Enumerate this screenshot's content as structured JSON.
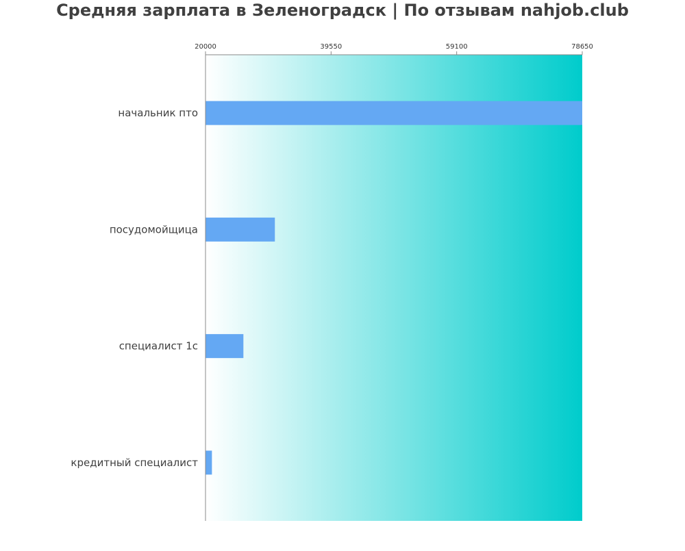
{
  "chart_data": {
    "type": "bar",
    "orientation": "horizontal",
    "title": "Средняя зарплата в Зеленоградск | По отзывам nahjob.club",
    "categories": [
      "начальник пто",
      "посудомойщица",
      "специалист 1с",
      "кредитный специалист"
    ],
    "values": [
      78650,
      30800,
      25900,
      21000
    ],
    "x_ticks": [
      "20000",
      "39550",
      "59100",
      "78650"
    ],
    "xlim": [
      20000,
      78650
    ],
    "grid": false,
    "bar_color": "#64a8f3",
    "background_gradient": [
      "#ffffff",
      "#00cccc"
    ]
  }
}
